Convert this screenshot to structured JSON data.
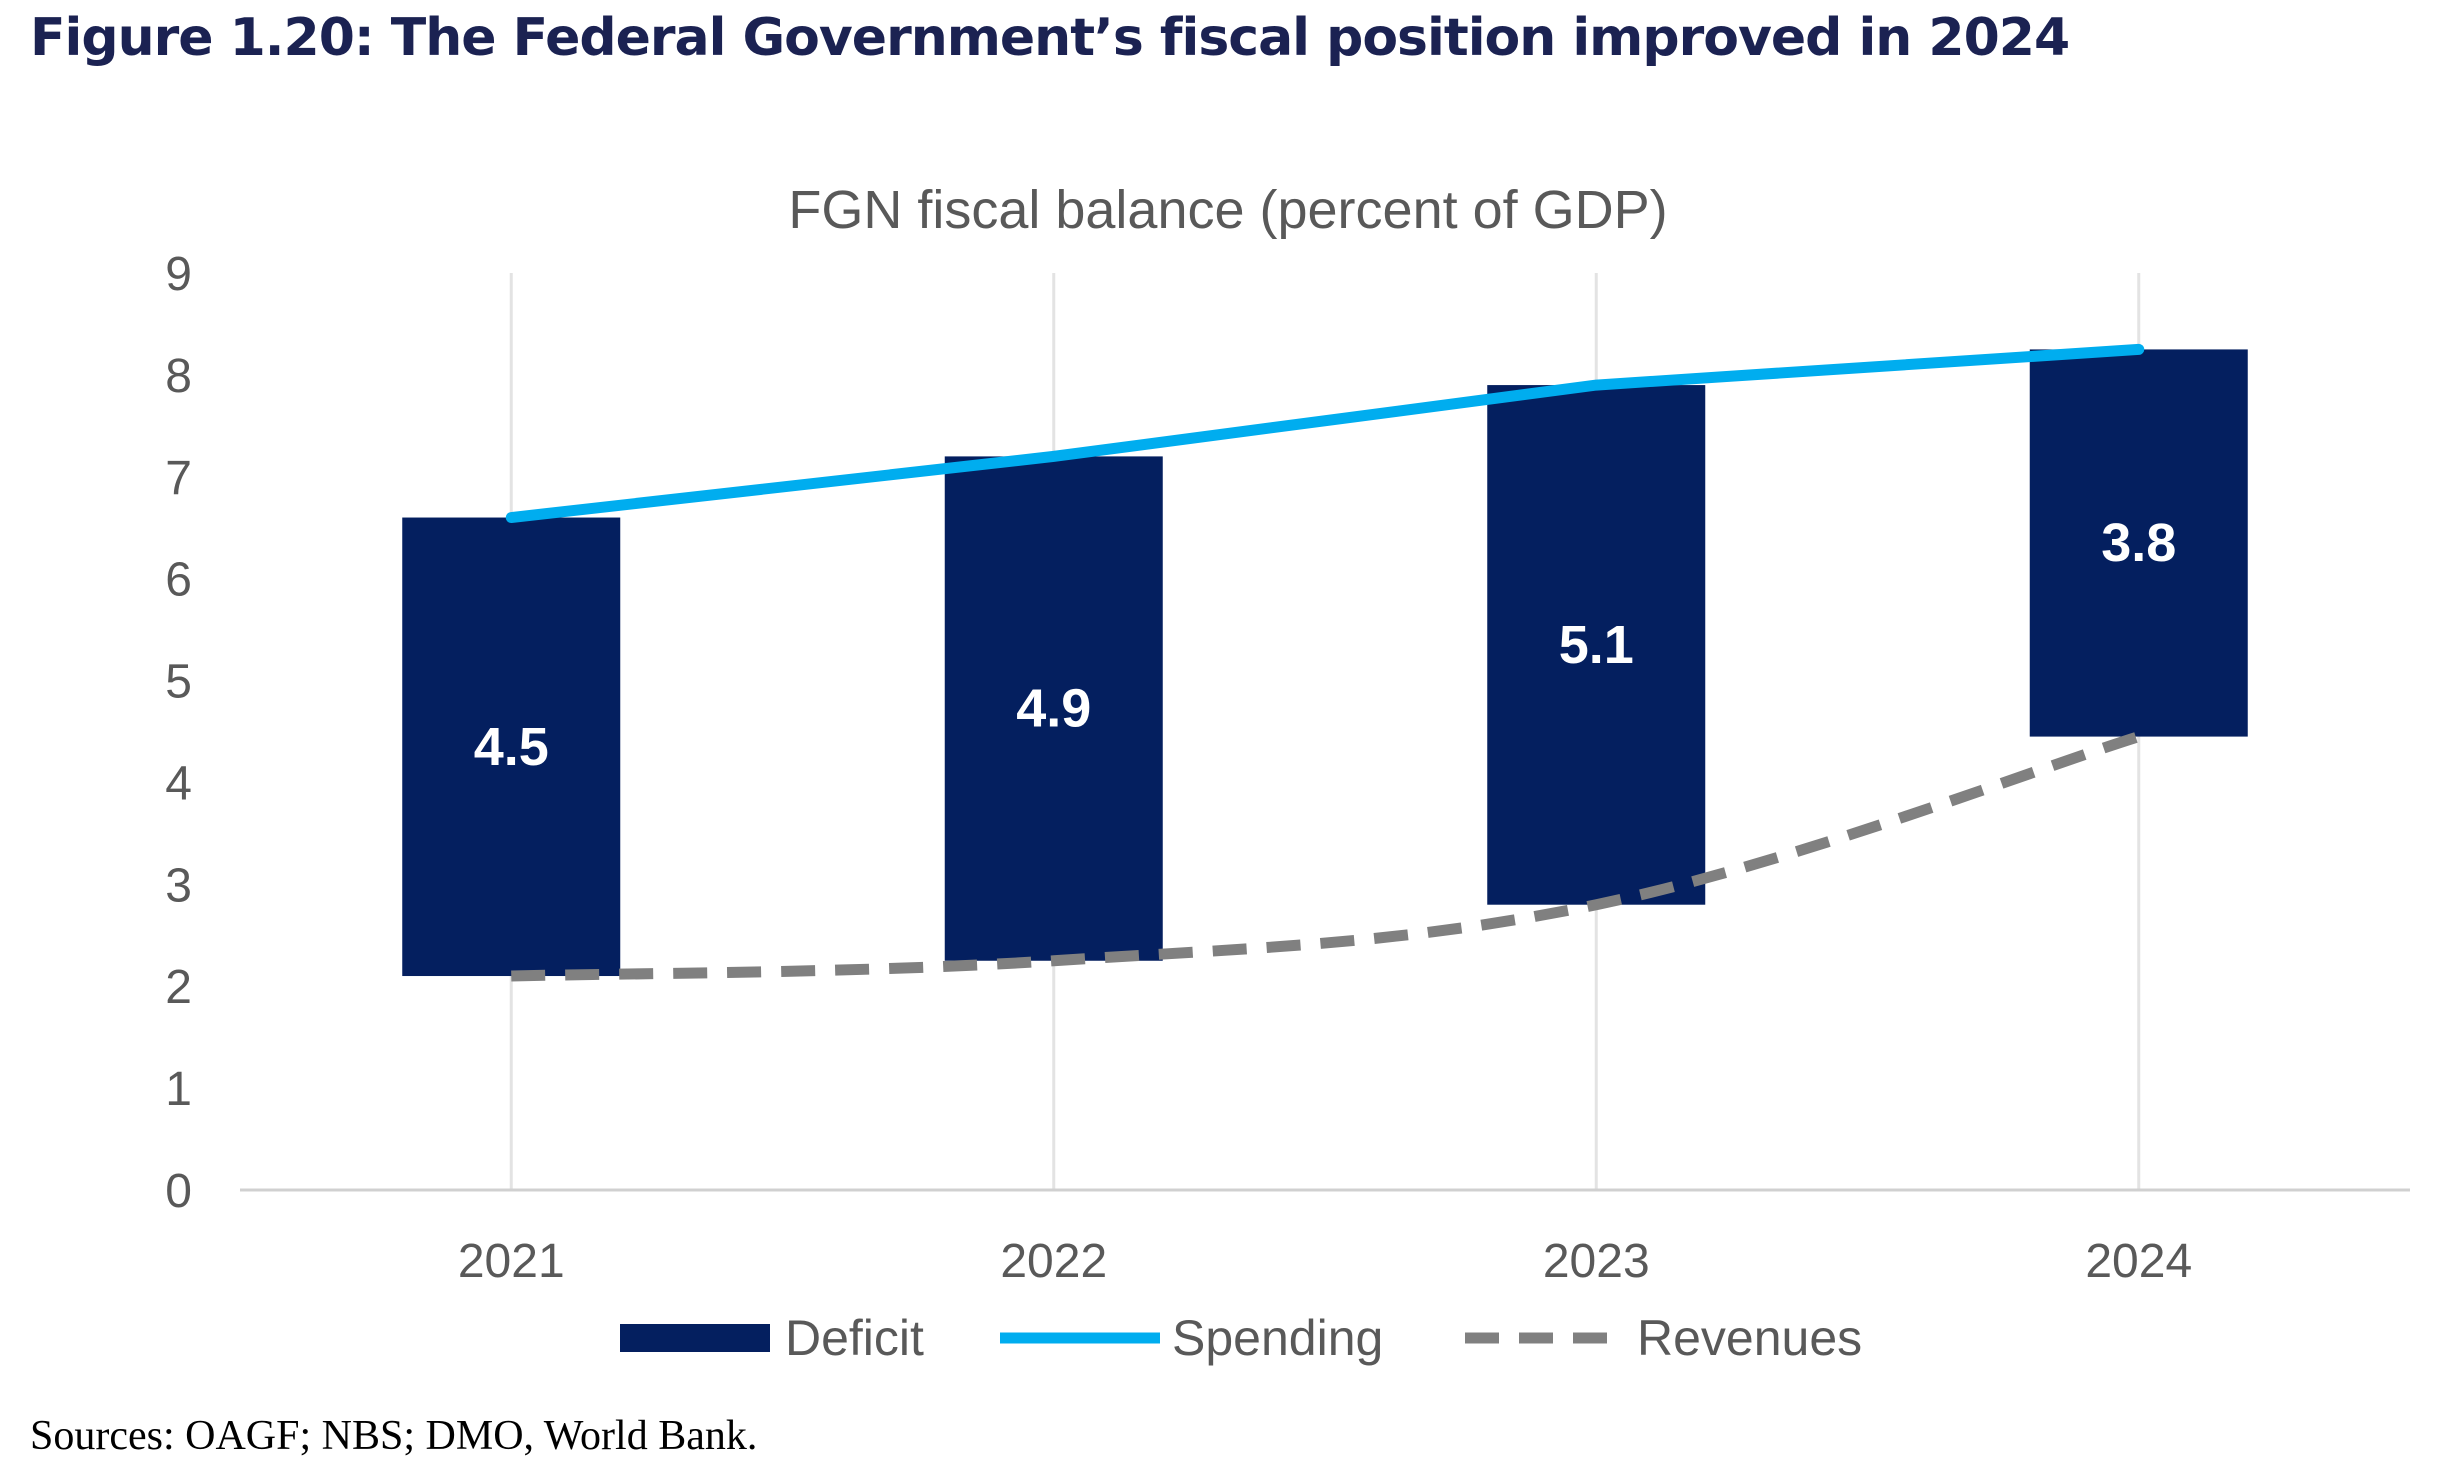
{
  "figure": {
    "title": "Figure 1.20: The Federal Government’s fiscal position improved in 2024",
    "sources": "Sources: OAGF; NBS; DMO, World Bank."
  },
  "chart_data": {
    "type": "bar",
    "title": "FGN fiscal balance (percent of GDP)",
    "categories": [
      "2021",
      "2022",
      "2023",
      "2024"
    ],
    "ylim": [
      0,
      9
    ],
    "yticks": [
      "0",
      "1",
      "2",
      "3",
      "4",
      "5",
      "6",
      "7",
      "8",
      "9"
    ],
    "grid": "vertical",
    "legend_position": "bottom",
    "series": [
      {
        "name": "Deficit",
        "kind": "floating-bar",
        "color": "#041f5f",
        "bottom": [
          2.1,
          2.25,
          2.8,
          4.45
        ],
        "top": [
          6.6,
          7.2,
          7.9,
          8.25
        ],
        "labels": [
          "4.5",
          "4.9",
          "5.1",
          "3.8"
        ]
      },
      {
        "name": "Spending",
        "kind": "line",
        "color": "#00adef",
        "style": "solid",
        "values": [
          6.6,
          7.2,
          7.9,
          8.25
        ]
      },
      {
        "name": "Revenues",
        "kind": "line",
        "color": "#808080",
        "style": "dashed",
        "values": [
          2.1,
          2.25,
          2.8,
          4.45
        ]
      }
    ]
  }
}
